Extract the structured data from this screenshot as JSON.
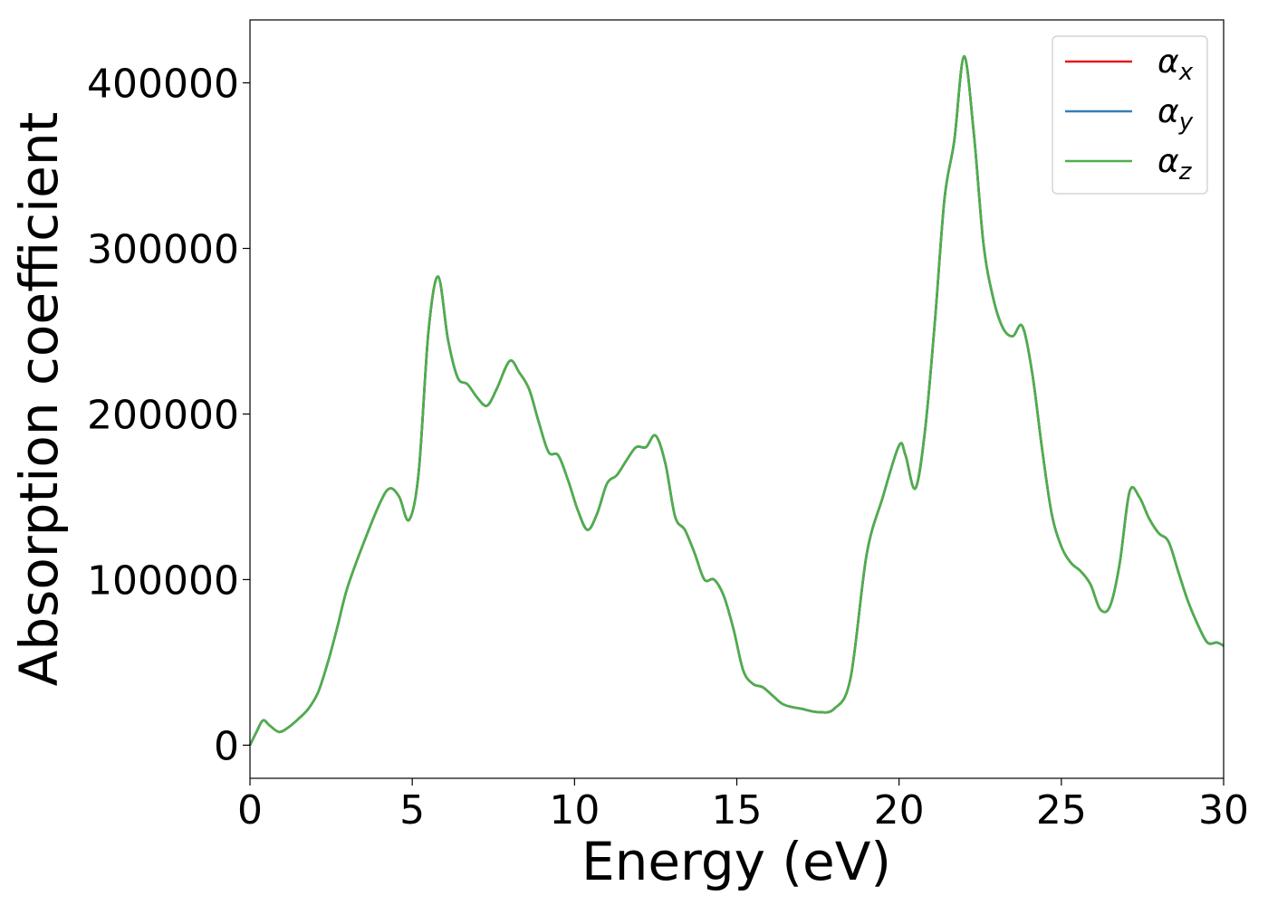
{
  "chart_data": {
    "type": "line",
    "title": "",
    "xlabel": "Energy (eV)",
    "ylabel": "Absorption coefficient",
    "xlim": [
      0,
      30
    ],
    "ylim": [
      -20000,
      438000
    ],
    "xticks": [
      0,
      5,
      10,
      15,
      20,
      25,
      30
    ],
    "yticks": [
      0,
      100000,
      200000,
      300000,
      400000
    ],
    "grid": false,
    "legend": "top-right",
    "x": [
      0,
      0.2,
      0.4,
      0.6,
      0.9,
      1.2,
      1.5,
      1.8,
      2.1,
      2.4,
      2.7,
      3.0,
      3.5,
      4.0,
      4.3,
      4.6,
      4.9,
      5.2,
      5.5,
      5.8,
      6.1,
      6.4,
      6.7,
      7.0,
      7.3,
      7.6,
      8.0,
      8.3,
      8.6,
      8.9,
      9.2,
      9.5,
      9.8,
      10.1,
      10.4,
      10.7,
      11.0,
      11.3,
      11.6,
      11.9,
      12.2,
      12.5,
      12.8,
      13.1,
      13.4,
      13.7,
      14.0,
      14.3,
      14.6,
      14.9,
      15.2,
      15.5,
      15.8,
      16.1,
      16.4,
      16.7,
      17.0,
      17.5,
      18.0,
      18.5,
      19.0,
      19.5,
      20.0,
      20.2,
      20.5,
      20.8,
      21.1,
      21.4,
      21.7,
      22.0,
      22.3,
      22.6,
      22.9,
      23.2,
      23.5,
      23.8,
      24.1,
      24.4,
      24.7,
      25.0,
      25.3,
      25.6,
      25.9,
      26.2,
      26.5,
      26.8,
      27.1,
      27.4,
      27.7,
      28.0,
      28.3,
      28.6,
      28.9,
      29.2,
      29.5,
      29.8,
      30.0
    ],
    "series": [
      {
        "name": "αx",
        "color": "#e41a1c",
        "values": [
          0,
          8000,
          15000,
          12000,
          8000,
          11000,
          16000,
          22000,
          32000,
          50000,
          72000,
          95000,
          122000,
          146000,
          155000,
          150000,
          136000,
          165000,
          250000,
          283000,
          245000,
          222000,
          218000,
          210000,
          205000,
          215000,
          232000,
          225000,
          215000,
          195000,
          177000,
          175000,
          160000,
          142000,
          130000,
          140000,
          158000,
          163000,
          172000,
          180000,
          180000,
          187000,
          170000,
          138000,
          130000,
          116000,
          100000,
          100000,
          90000,
          70000,
          45000,
          37000,
          35000,
          30000,
          25000,
          23000,
          22000,
          20000,
          22000,
          40000,
          115000,
          150000,
          181000,
          175000,
          155000,
          190000,
          255000,
          330000,
          365000,
          416000,
          370000,
          303000,
          270000,
          252000,
          247000,
          253000,
          225000,
          180000,
          140000,
          120000,
          110000,
          105000,
          97000,
          82000,
          84000,
          110000,
          153000,
          150000,
          137000,
          128000,
          123000,
          105000,
          87000,
          73000,
          62000,
          62000,
          60000
        ]
      },
      {
        "name": "αy",
        "color": "#377eb8",
        "values": [
          0,
          8000,
          15000,
          12000,
          8000,
          11000,
          16000,
          22000,
          32000,
          50000,
          72000,
          95000,
          122000,
          146000,
          155000,
          150000,
          136000,
          165000,
          250000,
          283000,
          245000,
          222000,
          218000,
          210000,
          205000,
          215000,
          232000,
          225000,
          215000,
          195000,
          177000,
          175000,
          160000,
          142000,
          130000,
          140000,
          158000,
          163000,
          172000,
          180000,
          180000,
          187000,
          170000,
          138000,
          130000,
          116000,
          100000,
          100000,
          90000,
          70000,
          45000,
          37000,
          35000,
          30000,
          25000,
          23000,
          22000,
          20000,
          22000,
          40000,
          115000,
          150000,
          181000,
          175000,
          155000,
          190000,
          255000,
          330000,
          365000,
          416000,
          370000,
          303000,
          270000,
          252000,
          247000,
          253000,
          225000,
          180000,
          140000,
          120000,
          110000,
          105000,
          97000,
          82000,
          84000,
          110000,
          153000,
          150000,
          137000,
          128000,
          123000,
          105000,
          87000,
          73000,
          62000,
          62000,
          60000
        ]
      },
      {
        "name": "αz",
        "color": "#4daf4a",
        "values": [
          0,
          8000,
          15000,
          12000,
          8000,
          11000,
          16000,
          22000,
          32000,
          50000,
          72000,
          95000,
          122000,
          146000,
          155000,
          150000,
          136000,
          165000,
          250000,
          283000,
          245000,
          222000,
          218000,
          210000,
          205000,
          215000,
          232000,
          225000,
          215000,
          195000,
          177000,
          175000,
          160000,
          142000,
          130000,
          140000,
          158000,
          163000,
          172000,
          180000,
          180000,
          187000,
          170000,
          138000,
          130000,
          116000,
          100000,
          100000,
          90000,
          70000,
          45000,
          37000,
          35000,
          30000,
          25000,
          23000,
          22000,
          20000,
          22000,
          40000,
          115000,
          150000,
          181000,
          175000,
          155000,
          190000,
          255000,
          330000,
          365000,
          416000,
          370000,
          303000,
          270000,
          252000,
          247000,
          253000,
          225000,
          180000,
          140000,
          120000,
          110000,
          105000,
          97000,
          82000,
          84000,
          110000,
          153000,
          150000,
          137000,
          128000,
          123000,
          105000,
          87000,
          73000,
          62000,
          62000,
          60000
        ]
      }
    ],
    "legend_entries": [
      {
        "symbol": "α",
        "sub": "x",
        "color": "#e41a1c"
      },
      {
        "symbol": "α",
        "sub": "y",
        "color": "#377eb8"
      },
      {
        "symbol": "α",
        "sub": "z",
        "color": "#4daf4a"
      }
    ]
  }
}
